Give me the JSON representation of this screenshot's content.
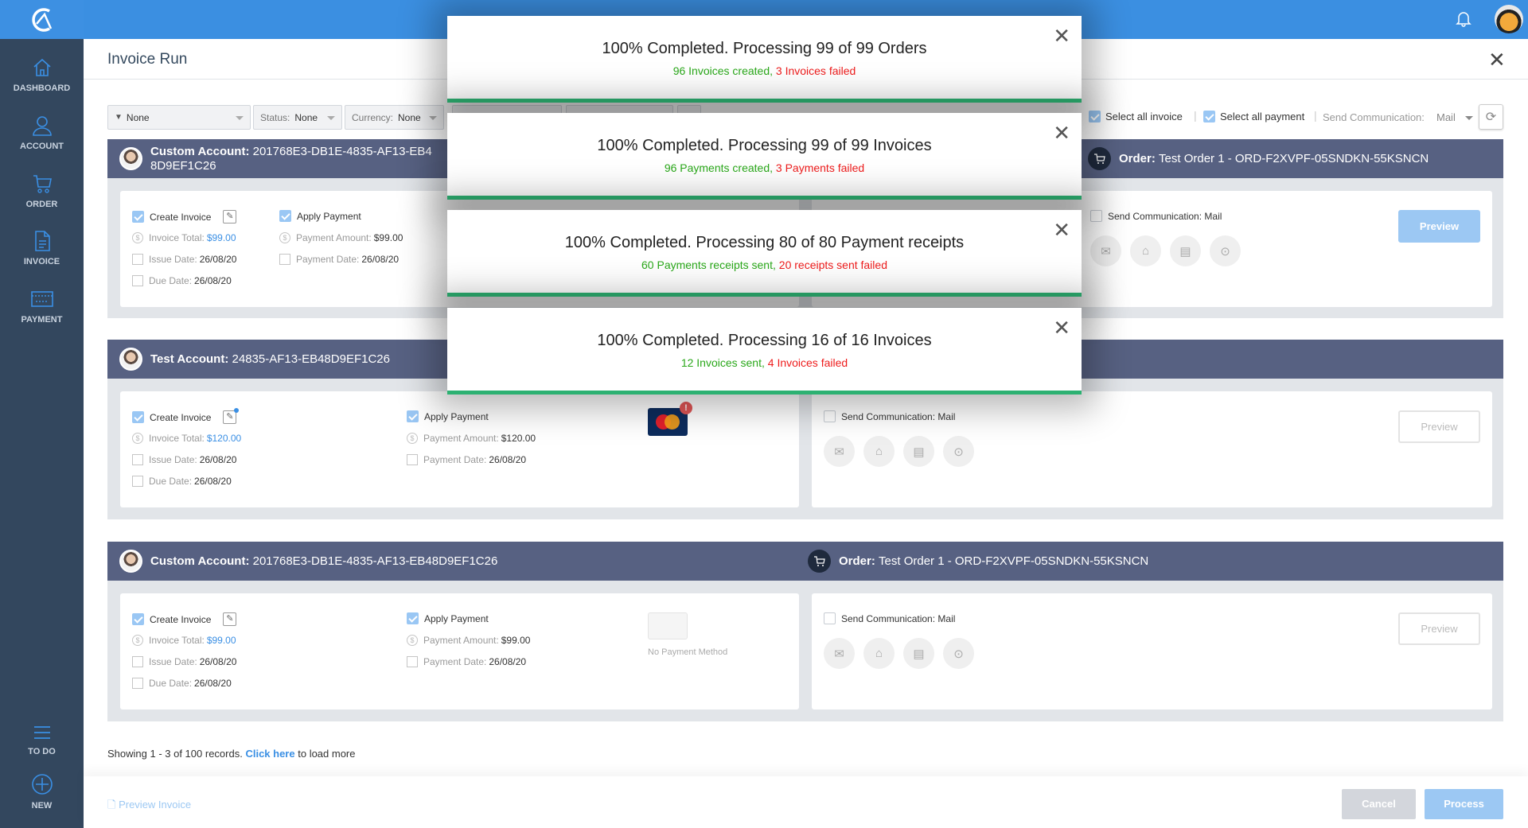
{
  "app": {
    "logo": "logo-icon",
    "accent": "#3b8fe1",
    "sidebar_bg": "#33475e"
  },
  "sidebar": {
    "items": [
      {
        "label": "DASHBOARD",
        "icon": "home-icon"
      },
      {
        "label": "ACCOUNT",
        "icon": "user-icon"
      },
      {
        "label": "ORDER",
        "icon": "cart-icon"
      },
      {
        "label": "INVOICE",
        "icon": "document-icon"
      },
      {
        "label": "PAYMENT",
        "icon": "credit-card-icon"
      }
    ],
    "bottom": [
      {
        "label": "TO DO",
        "icon": "menu-icon"
      },
      {
        "label": "NEW",
        "icon": "plus-circle-icon"
      }
    ]
  },
  "header": {
    "title": "Invoice Run"
  },
  "filters": {
    "filter_value": "None",
    "status_label": "Status:",
    "status_value": "None",
    "currency_label": "Currency:",
    "currency_value": "None",
    "select_all_invoice": "Select all invoice",
    "select_all_payment": "Select all payment",
    "send_comm_label": "Send Communication:",
    "send_comm_value": "Mail"
  },
  "groups": [
    {
      "account_label": "Custom Account:",
      "account_id": "201768E3-DB1E-4835-AF13-EB48D9EF1C26",
      "order_label": "Order:",
      "order_value": "Test Order 1 - ORD-F2XVPF-05SNDKN-55KSNCN",
      "create_invoice": "Create Invoice",
      "invoice_total_label": "Invoice Total:",
      "invoice_total": "$99.00",
      "issue_label": "Issue Date:",
      "issue_date": "26/08/20",
      "due_label": "Due Date:",
      "due_date": "26/08/20",
      "apply_payment": "Apply Payment",
      "payment_amount_label": "Payment Amount:",
      "payment_amount": "$99.00",
      "payment_date_label": "Payment Date:",
      "payment_date": "26/08/20",
      "send_comm": "Send Communication: Mail",
      "preview": "Preview"
    },
    {
      "account_label": "Test Account:",
      "account_id": "24835-AF13-EB48D9EF1C26",
      "create_invoice": "Create Invoice",
      "invoice_total_label": "Invoice Total:",
      "invoice_total": "$120.00",
      "issue_label": "Issue Date:",
      "issue_date": "26/08/20",
      "due_label": "Due Date:",
      "due_date": "26/08/20",
      "apply_payment": "Apply Payment",
      "payment_amount_label": "Payment Amount:",
      "payment_amount": "$120.00",
      "payment_date_label": "Payment Date:",
      "payment_date": "26/08/20",
      "payment_method": "mastercard-icon",
      "send_comm": "Send Communication: Mail",
      "preview": "Preview"
    },
    {
      "account_label": "Custom Account:",
      "account_id": "201768E3-DB1E-4835-AF13-EB48D9EF1C26",
      "order_label": "Order:",
      "order_value": "Test Order 1 - ORD-F2XVPF-05SNDKN-55KSNCN",
      "create_invoice": "Create Invoice",
      "invoice_total_label": "Invoice Total:",
      "invoice_total": "$99.00",
      "issue_label": "Issue Date:",
      "issue_date": "26/08/20",
      "due_label": "Due Date:",
      "due_date": "26/08/20",
      "apply_payment": "Apply Payment",
      "payment_amount_label": "Payment Amount:",
      "payment_amount": "$99.00",
      "payment_date_label": "Payment Date:",
      "payment_date": "26/08/20",
      "no_payment_method": "No Payment Method",
      "send_comm": "Send Communication: Mail",
      "preview": "Preview"
    }
  ],
  "pagination": {
    "showing": "Showing 1 - 3  of 100 records.",
    "link": "Click here",
    "suffix": "to load more"
  },
  "footer": {
    "preview_invoice": "Preview Invoice",
    "cancel": "Cancel",
    "process": "Process"
  },
  "dialogs": [
    {
      "title": "100% Completed. Processing 99 of 99 Orders",
      "success": "96 Invoices created,",
      "failed": "3 Invoices failed",
      "progress": 100
    },
    {
      "title": "100% Completed. Processing 99 of 99 Invoices",
      "success": "96 Payments created,",
      "failed": "3 Payments failed",
      "progress": 100
    },
    {
      "title": "100% Completed. Processing 80 of 80 Payment receipts",
      "success": "60 Payments receipts sent,",
      "failed": "20 receipts sent failed",
      "progress": 100
    },
    {
      "title": "100% Completed. Processing 16 of 16 Invoices",
      "success": "12 Invoices sent,",
      "failed": "4 Invoices  failed",
      "progress": 100
    }
  ]
}
